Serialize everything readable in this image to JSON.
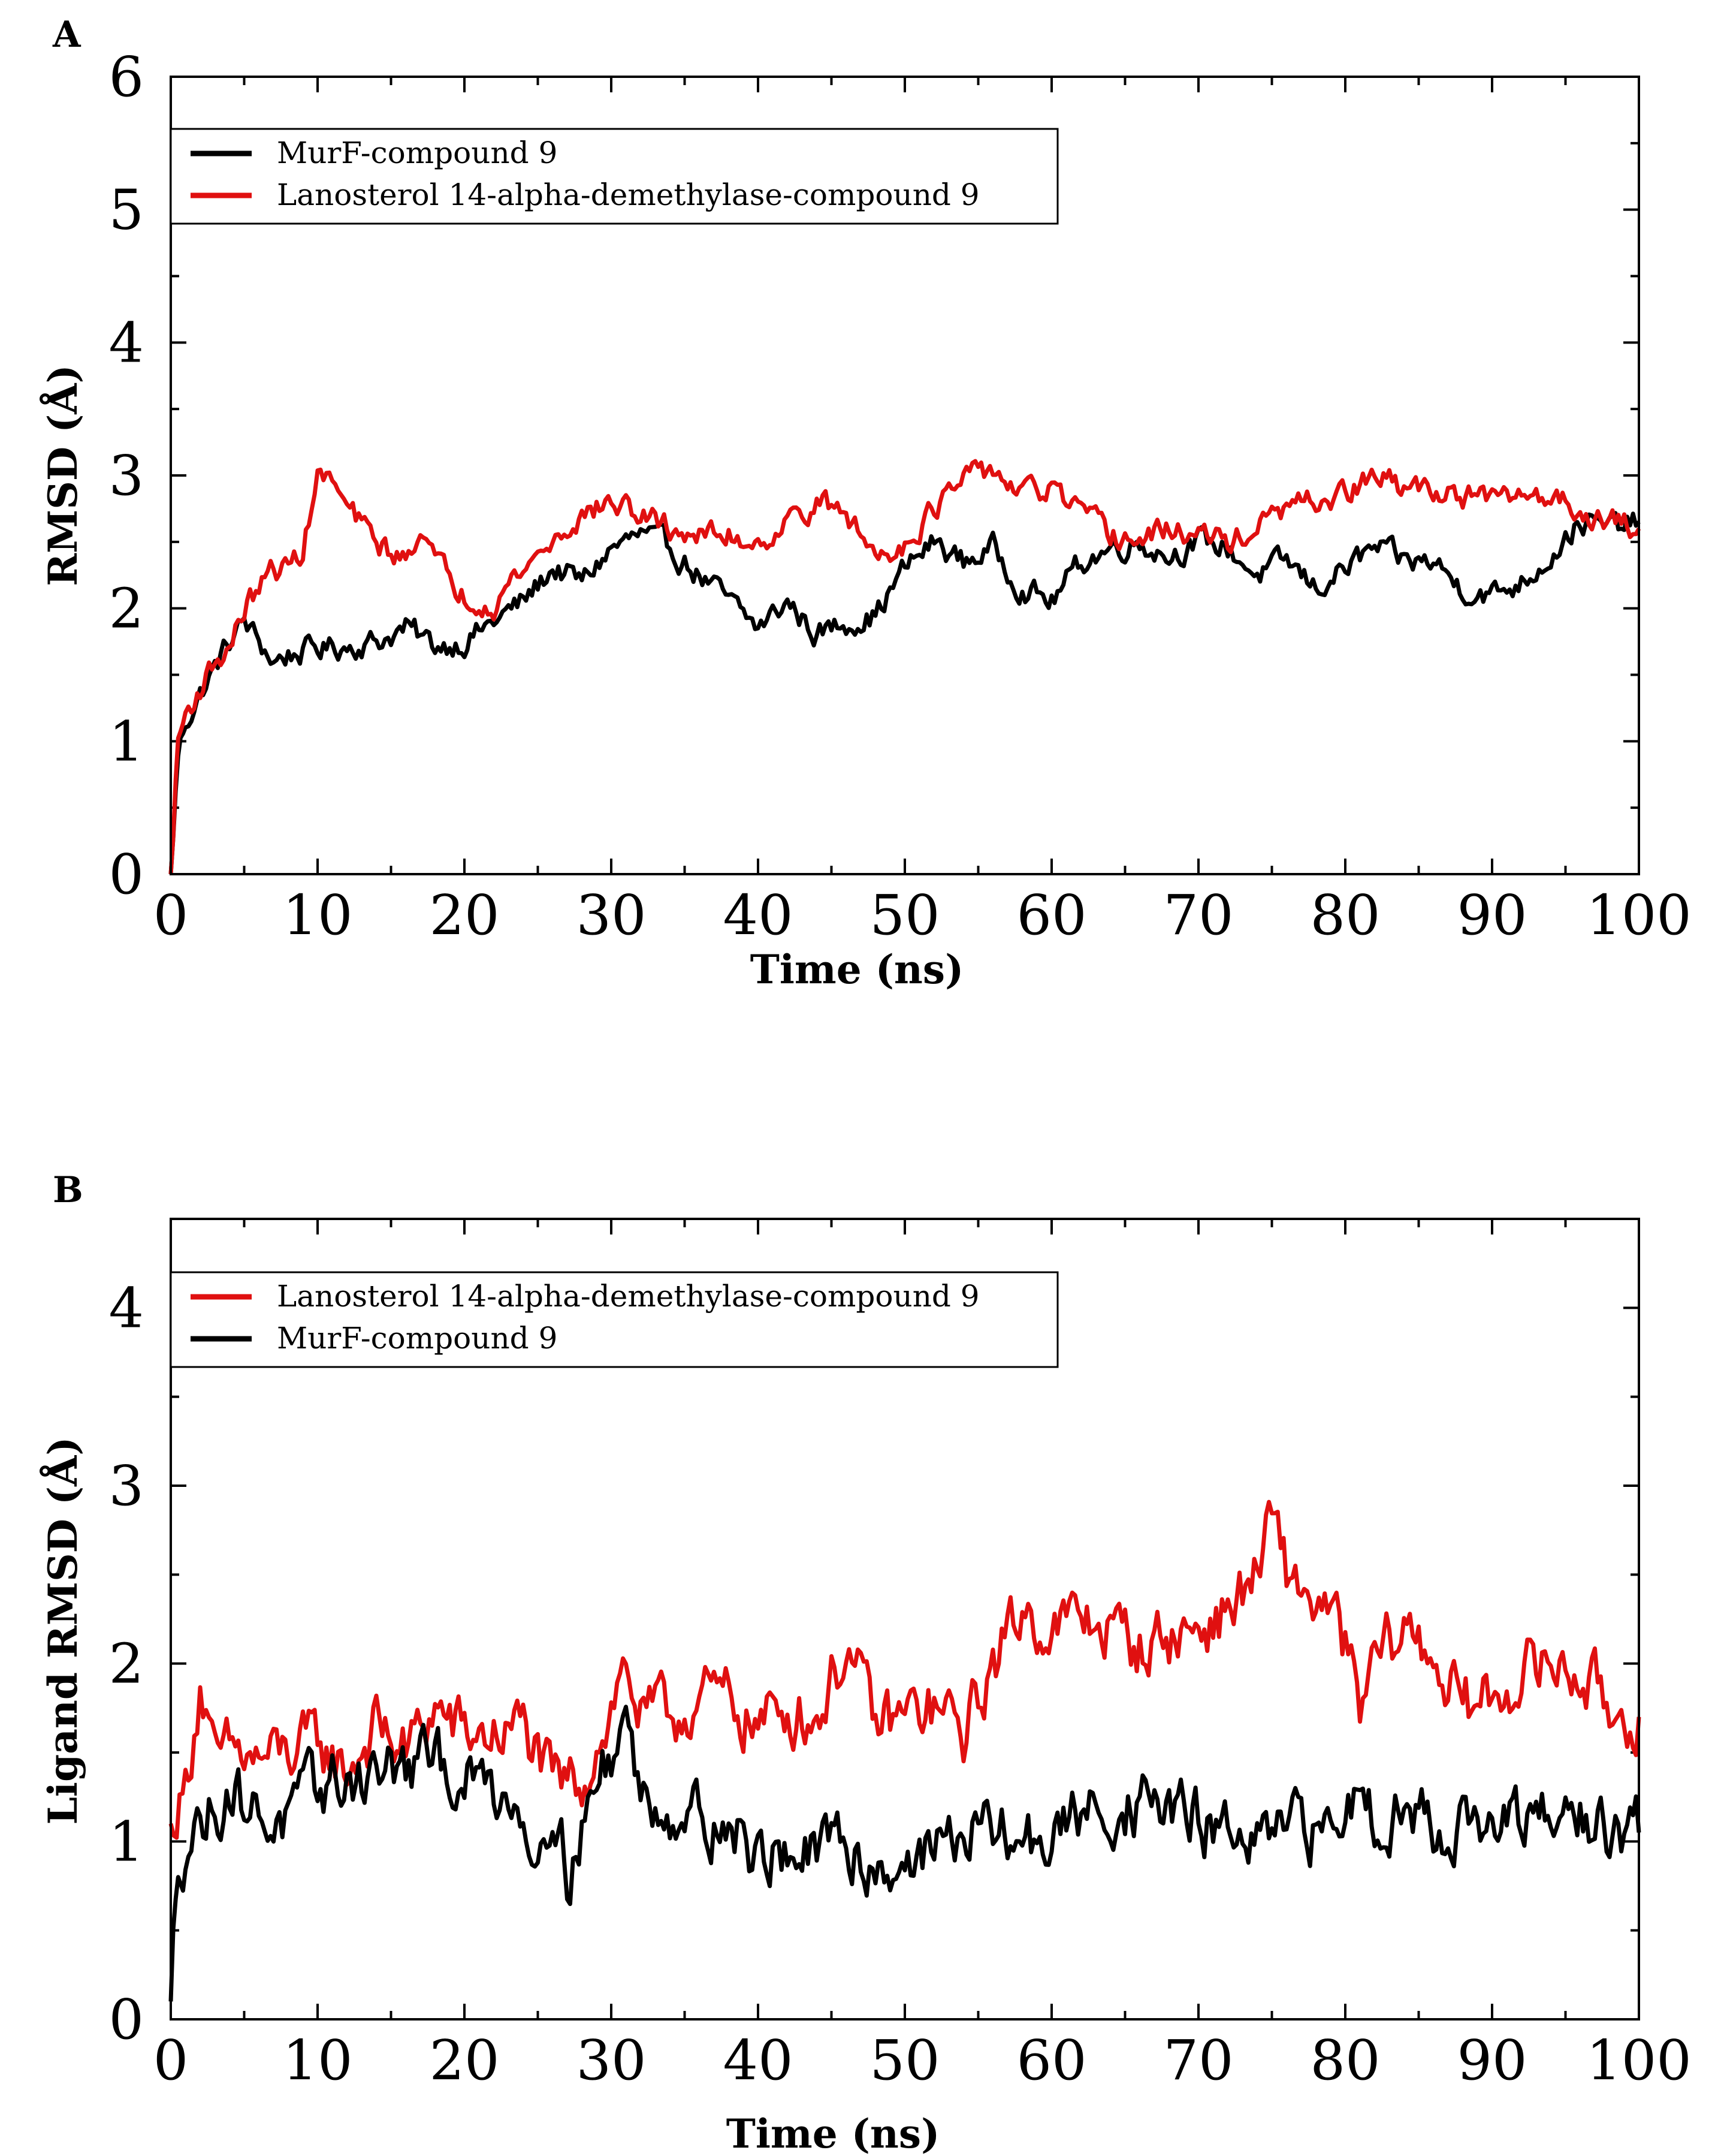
{
  "chart_data": [
    {
      "panel_label": "A",
      "type": "line",
      "xlabel": "Time (ns)",
      "ylabel": "RMSD (Å)",
      "xlim": [
        0,
        100
      ],
      "ylim": [
        0,
        6
      ],
      "x_ticks": [
        "0",
        "10",
        "20",
        "30",
        "40",
        "50",
        "60",
        "70",
        "80",
        "90",
        "100"
      ],
      "y_ticks": [
        "0",
        "1",
        "2",
        "3",
        "4",
        "5",
        "6"
      ],
      "legend_position": "top-left",
      "series": [
        {
          "name": "MurF-compound 9",
          "color": "#000000",
          "x": [
            0,
            0.5,
            1,
            2,
            3,
            4,
            5,
            6,
            7,
            8,
            10,
            12,
            14,
            16,
            18,
            20,
            22,
            24,
            26,
            28,
            30,
            32,
            34,
            36,
            38,
            40,
            42,
            44,
            46,
            48,
            50,
            52,
            54,
            56,
            58,
            60,
            62,
            64,
            66,
            68,
            70,
            72,
            74,
            76,
            78,
            80,
            82,
            84,
            86,
            88,
            90,
            92,
            94,
            96,
            98,
            100
          ],
          "y": [
            0,
            0.9,
            1.15,
            1.35,
            1.55,
            1.75,
            1.9,
            1.75,
            1.6,
            1.65,
            1.7,
            1.72,
            1.75,
            1.85,
            1.72,
            1.75,
            1.9,
            2.05,
            2.3,
            2.2,
            2.45,
            2.55,
            2.45,
            2.25,
            2.05,
            1.85,
            2.05,
            1.8,
            1.9,
            1.95,
            2.3,
            2.5,
            2.35,
            2.45,
            2.15,
            2.05,
            2.35,
            2.45,
            2.5,
            2.4,
            2.5,
            2.45,
            2.25,
            2.35,
            2.15,
            2.3,
            2.45,
            2.35,
            2.35,
            2.15,
            2.1,
            2.2,
            2.4,
            2.65,
            2.6,
            2.65
          ]
        },
        {
          "name": "Lanosterol 14-alpha-demethylase-compound 9",
          "color": "#e01010",
          "x": [
            0,
            0.5,
            1,
            2,
            3,
            4,
            5,
            6,
            7,
            8,
            9,
            10,
            11,
            12,
            14,
            16,
            17,
            18,
            20,
            22,
            24,
            26,
            28,
            30,
            32,
            34,
            36,
            38,
            40,
            42,
            44,
            46,
            48,
            50,
            52,
            54,
            56,
            58,
            60,
            62,
            64,
            66,
            68,
            70,
            72,
            74,
            76,
            78,
            80,
            82,
            84,
            86,
            88,
            90,
            92,
            94,
            96,
            98,
            100
          ],
          "y": [
            0,
            1.0,
            1.2,
            1.4,
            1.6,
            1.7,
            2.0,
            2.15,
            2.3,
            2.3,
            2.45,
            3.0,
            2.95,
            2.75,
            2.5,
            2.35,
            2.65,
            2.35,
            2.1,
            2.05,
            2.3,
            2.5,
            2.7,
            2.8,
            2.7,
            2.6,
            2.55,
            2.55,
            2.5,
            2.65,
            2.8,
            2.7,
            2.4,
            2.5,
            2.75,
            2.95,
            3.05,
            2.85,
            2.9,
            2.7,
            2.55,
            2.5,
            2.6,
            2.55,
            2.5,
            2.6,
            2.75,
            2.8,
            2.85,
            3.0,
            2.9,
            2.9,
            2.85,
            2.8,
            2.85,
            2.85,
            2.75,
            2.65,
            2.6
          ]
        }
      ]
    },
    {
      "panel_label": "B",
      "type": "line",
      "xlabel": "Time (ns)",
      "ylabel": "Ligand RMSD (Å)",
      "xlim": [
        0,
        100
      ],
      "ylim": [
        0,
        4.5
      ],
      "x_ticks": [
        "0",
        "10",
        "20",
        "30",
        "40",
        "50",
        "60",
        "70",
        "80",
        "90",
        "100"
      ],
      "y_ticks": [
        "0",
        "1",
        "2",
        "3",
        "4"
      ],
      "legend_position": "top-left",
      "series": [
        {
          "name": "Lanosterol 14-alpha-demethylase-compound 9",
          "color": "#e01010",
          "x": [
            0,
            1,
            2,
            3,
            4,
            6,
            8,
            10,
            12,
            14,
            16,
            18,
            20,
            22,
            24,
            26,
            28,
            30,
            31,
            32,
            34,
            36,
            38,
            40,
            42,
            44,
            46,
            48,
            50,
            52,
            54,
            56,
            58,
            60,
            62,
            64,
            66,
            68,
            70,
            72,
            74,
            75,
            76,
            78,
            80,
            81,
            82,
            84,
            86,
            88,
            90,
            92,
            94,
            96,
            98,
            100
          ],
          "y": [
            1.1,
            1.3,
            1.9,
            1.4,
            1.5,
            1.45,
            1.5,
            1.55,
            1.4,
            1.65,
            1.5,
            1.75,
            1.6,
            1.6,
            1.65,
            1.3,
            1.35,
            1.75,
            2.0,
            1.7,
            1.7,
            1.8,
            1.8,
            1.65,
            1.75,
            1.7,
            2.1,
            1.65,
            1.7,
            1.75,
            1.6,
            2.0,
            2.3,
            2.2,
            2.25,
            2.2,
            2.1,
            2.15,
            2.2,
            2.3,
            2.5,
            2.8,
            2.5,
            2.35,
            2.1,
            1.7,
            2.0,
            2.2,
            2.05,
            1.75,
            1.8,
            1.95,
            2.0,
            1.95,
            1.75,
            1.7
          ]
        },
        {
          "name": "MurF-compound 9",
          "color": "#000000",
          "x": [
            0,
            0.5,
            1,
            2,
            3,
            4,
            6,
            8,
            10,
            12,
            14,
            16,
            18,
            20,
            22,
            24,
            25,
            26,
            27,
            28,
            29,
            30,
            31,
            32,
            34,
            36,
            38,
            40,
            42,
            44,
            46,
            48,
            50,
            52,
            54,
            56,
            58,
            60,
            62,
            64,
            66,
            68,
            70,
            72,
            74,
            76,
            78,
            80,
            81,
            82,
            84,
            86,
            88,
            90,
            92,
            94,
            96,
            98,
            100
          ],
          "y": [
            0.1,
            0.9,
            1.0,
            1.1,
            1.2,
            1.3,
            1.15,
            1.1,
            1.3,
            1.35,
            1.4,
            1.4,
            1.45,
            1.35,
            1.3,
            1.2,
            0.9,
            1.3,
            0.8,
            1.1,
            1.3,
            1.5,
            1.7,
            1.25,
            1.2,
            1.15,
            1.1,
            0.9,
            0.95,
            0.9,
            1.0,
            0.85,
            0.9,
            0.95,
            1.05,
            1.05,
            1.0,
            1.0,
            1.15,
            1.2,
            1.2,
            1.2,
            1.1,
            1.05,
            0.95,
            1.05,
            1.05,
            1.15,
            1.35,
            1.15,
            1.2,
            1.1,
            1.1,
            1.05,
            1.1,
            1.1,
            1.15,
            1.05,
            1.05
          ]
        }
      ]
    }
  ]
}
